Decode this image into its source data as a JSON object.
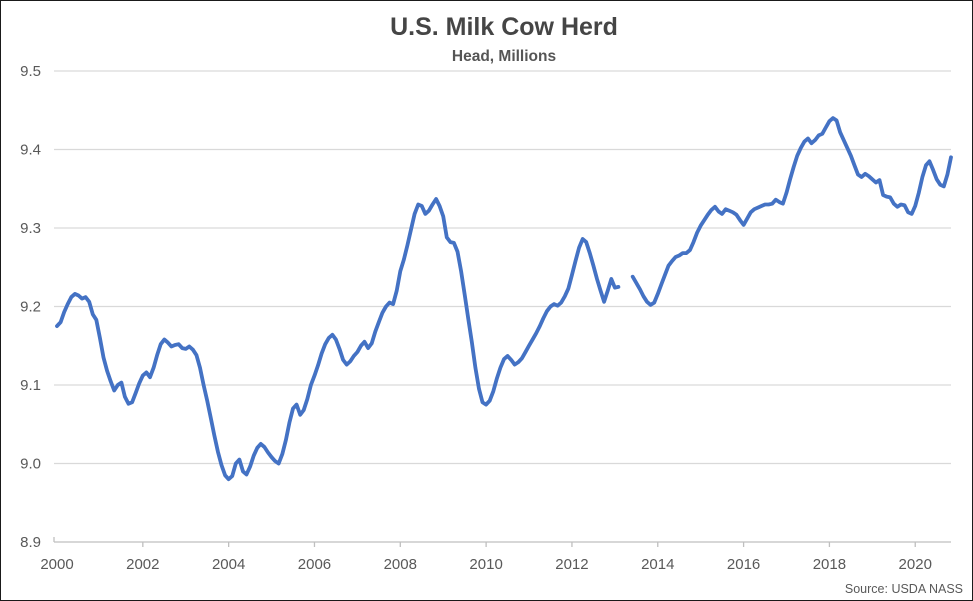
{
  "chart_data": {
    "type": "line",
    "title": "U.S. Milk Cow Herd",
    "subtitle": "Head, Millions",
    "source": "Source: USDA NASS",
    "xlabel": "",
    "ylabel": "",
    "ylim": [
      8.9,
      9.5
    ],
    "y_tick_labels": [
      "8.9",
      "9.0",
      "9.1",
      "9.2",
      "9.3",
      "9.4",
      "9.5"
    ],
    "y_ticks": [
      8.9,
      9.0,
      9.1,
      9.2,
      9.3,
      9.4,
      9.5
    ],
    "x_tick_labels": [
      "2000",
      "2002",
      "2004",
      "2006",
      "2008",
      "2010",
      "2012",
      "2014",
      "2016",
      "2018",
      "2020"
    ],
    "x_tick_years": [
      2000,
      2002,
      2004,
      2006,
      2008,
      2010,
      2012,
      2014,
      2016,
      2018,
      2020
    ],
    "x_start_year": 2000,
    "x_months_per_point": 1,
    "x_end": "2020-11",
    "grid": "horizontal",
    "legend": "none",
    "gap_indices_note": "null values = months not published (2013 gap)",
    "series": [
      {
        "name": "U.S. milk cow herd (head, millions)",
        "color": "#4472C4",
        "values": [
          9.175,
          9.18,
          9.193,
          9.203,
          9.212,
          9.216,
          9.214,
          9.21,
          9.212,
          9.206,
          9.19,
          9.183,
          9.16,
          9.135,
          9.118,
          9.105,
          9.093,
          9.1,
          9.103,
          9.085,
          9.076,
          9.078,
          9.09,
          9.102,
          9.112,
          9.116,
          9.11,
          9.122,
          9.138,
          9.152,
          9.158,
          9.154,
          9.149,
          9.151,
          9.152,
          9.147,
          9.146,
          9.149,
          9.145,
          9.138,
          9.122,
          9.1,
          9.08,
          9.058,
          9.036,
          9.015,
          8.998,
          8.985,
          8.98,
          8.984,
          9.0,
          9.005,
          8.99,
          8.986,
          8.996,
          9.01,
          9.02,
          9.025,
          9.021,
          9.014,
          9.008,
          9.003,
          9.0,
          9.012,
          9.03,
          9.052,
          9.07,
          9.075,
          9.062,
          9.068,
          9.082,
          9.1,
          9.112,
          9.125,
          9.14,
          9.152,
          9.16,
          9.164,
          9.158,
          9.146,
          9.132,
          9.126,
          9.13,
          9.137,
          9.142,
          9.15,
          9.155,
          9.147,
          9.153,
          9.168,
          9.18,
          9.192,
          9.2,
          9.205,
          9.203,
          9.22,
          9.245,
          9.26,
          9.278,
          9.298,
          9.318,
          9.33,
          9.328,
          9.318,
          9.322,
          9.33,
          9.337,
          9.328,
          9.315,
          9.288,
          9.282,
          9.281,
          9.27,
          9.245,
          9.215,
          9.185,
          9.155,
          9.122,
          9.095,
          9.078,
          9.075,
          9.08,
          9.092,
          9.108,
          9.122,
          9.133,
          9.137,
          9.132,
          9.126,
          9.129,
          9.134,
          9.142,
          9.15,
          9.158,
          9.166,
          9.175,
          9.185,
          9.194,
          9.2,
          9.203,
          9.201,
          9.205,
          9.213,
          9.223,
          9.24,
          9.258,
          9.275,
          9.286,
          9.282,
          9.268,
          9.252,
          9.235,
          9.22,
          9.206,
          9.22,
          9.235,
          9.224,
          9.225,
          null,
          null,
          null,
          9.238,
          9.23,
          9.222,
          9.213,
          9.206,
          9.202,
          9.205,
          9.216,
          9.228,
          9.24,
          9.252,
          9.258,
          9.263,
          9.265,
          9.268,
          9.268,
          9.272,
          9.282,
          9.294,
          9.303,
          9.31,
          9.317,
          9.323,
          9.327,
          9.321,
          9.318,
          9.324,
          9.322,
          9.32,
          9.317,
          9.31,
          9.304,
          9.312,
          9.32,
          9.324,
          9.326,
          9.328,
          9.33,
          9.33,
          9.331,
          9.336,
          9.333,
          9.331,
          9.345,
          9.362,
          9.378,
          9.392,
          9.402,
          9.41,
          9.414,
          9.408,
          9.412,
          9.418,
          9.42,
          9.428,
          9.436,
          9.44,
          9.437,
          9.422,
          9.412,
          9.402,
          9.392,
          9.38,
          9.368,
          9.365,
          9.369,
          9.366,
          9.362,
          9.358,
          9.361,
          9.342,
          9.34,
          9.339,
          9.331,
          9.327,
          9.33,
          9.329,
          9.32,
          9.318,
          9.328,
          9.345,
          9.365,
          9.38,
          9.385,
          9.374,
          9.362,
          9.355,
          9.353,
          9.368,
          9.39
        ]
      }
    ]
  },
  "colors": {
    "line": "#4472C4",
    "gridline": "#D9D9D9",
    "axis_line": "#BFBFBF",
    "tick_text": "#595959",
    "title_text": "#454545",
    "background": "#FFFFFF",
    "frame_border": "#1A1A1A"
  }
}
